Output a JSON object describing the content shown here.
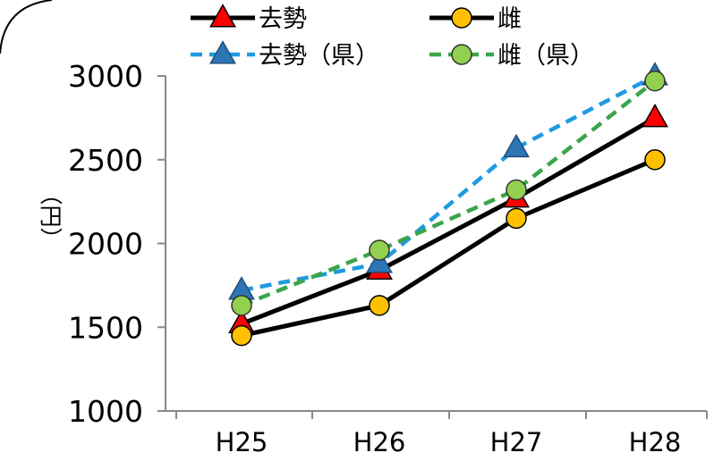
{
  "chart_data": {
    "type": "line",
    "categories": [
      "H25",
      "H26",
      "H27",
      "H28"
    ],
    "ylabel": "（円）",
    "ylim": [
      1000,
      3000
    ],
    "yticks": [
      1000,
      1500,
      2000,
      2500,
      3000
    ],
    "grid": false,
    "legend_position": "top",
    "series": [
      {
        "name": "去勢",
        "values": [
          1520,
          1840,
          2270,
          2750
        ],
        "color": "#000000",
        "marker_color": "#ff0000",
        "marker": "triangle",
        "dashed": false
      },
      {
        "name": "雌",
        "values": [
          1450,
          1630,
          2150,
          2500
        ],
        "color": "#000000",
        "marker_color": "#ffc000",
        "marker": "circle",
        "dashed": false
      },
      {
        "name": "去勢（県）",
        "values": [
          1720,
          1880,
          2570,
          3000
        ],
        "color": "#1f9ae0",
        "marker_color": "#2e75b6",
        "marker": "triangle",
        "dashed": true
      },
      {
        "name": "雌（県）",
        "values": [
          1630,
          1960,
          2320,
          2970
        ],
        "color": "#3aa54a",
        "marker_color": "#92d050",
        "marker": "circle",
        "dashed": true
      }
    ]
  }
}
